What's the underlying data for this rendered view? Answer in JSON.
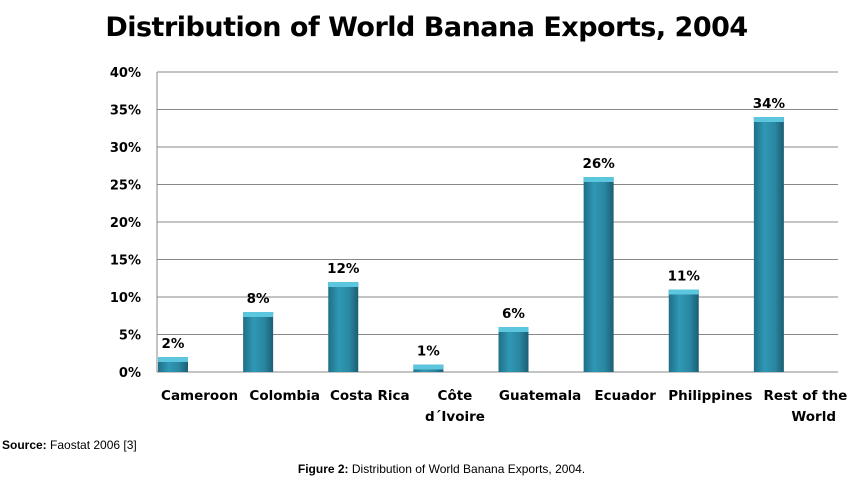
{
  "chart_data": {
    "type": "bar",
    "title": "Distribution of World Banana Exports, 2004",
    "categories": [
      "Cameroon",
      "Colombia",
      "Costa Rica",
      "Côte d´Ivoire",
      "Guatemala",
      "Ecuador",
      "Philippines",
      "Rest of the World"
    ],
    "category_lines": [
      [
        "Cameroon"
      ],
      [
        "Colombia"
      ],
      [
        "Costa Rica"
      ],
      [
        "Côte",
        "d´Ivoire"
      ],
      [
        "Guatemala"
      ],
      [
        "Ecuador"
      ],
      [
        "Philippines"
      ],
      [
        "Rest of the",
        "World"
      ]
    ],
    "values": [
      2,
      8,
      12,
      1,
      6,
      26,
      11,
      34
    ],
    "data_labels": [
      "2%",
      "8%",
      "12%",
      "1%",
      "6%",
      "26%",
      "11%",
      "34%"
    ],
    "ylim": [
      0,
      40
    ],
    "yticks": [
      "0%",
      "5%",
      "10%",
      "15%",
      "20%",
      "25%",
      "30%",
      "35%",
      "40%"
    ],
    "grid": true,
    "bar_color": "#2b8aa5",
    "xlabel": "",
    "ylabel": ""
  },
  "source": {
    "label": "Source:",
    "text": " Faostat 2006 [3]"
  },
  "caption": {
    "label": "Figure 2:",
    "text": " Distribution of World Banana Exports, 2004."
  }
}
